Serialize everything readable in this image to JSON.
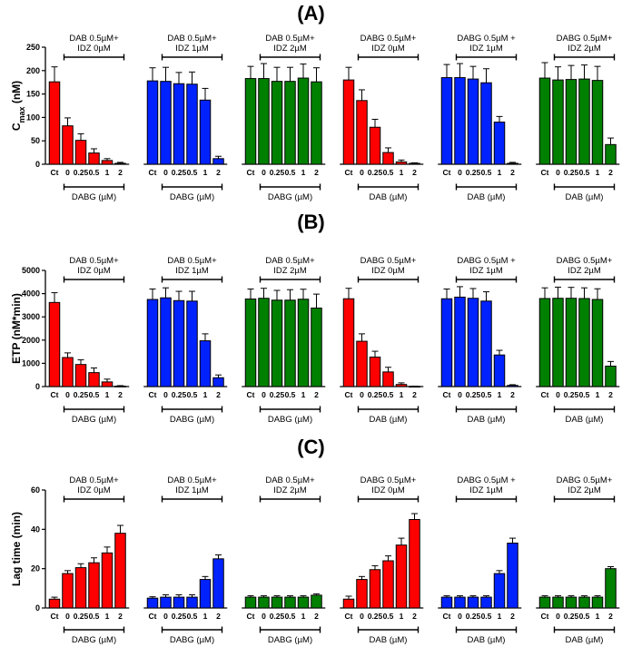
{
  "colors": {
    "red": "#ff0000",
    "blue": "#0022ff",
    "green": "#008000",
    "axis": "#000000"
  },
  "chart_data": [
    {
      "type": "bar",
      "panel_label": "(A)",
      "ylabel_main": "C",
      "ylabel_sub": "max",
      "ylabel_unit": " (nM)",
      "ylim": [
        0,
        250
      ],
      "yticks": [
        "0",
        "50",
        "100",
        "150",
        "200",
        "250"
      ],
      "grid": false,
      "groups": [
        {
          "top_label": [
            "DAB 0.5µM+",
            "IDZ 0µM"
          ],
          "categories": [
            "Ct",
            "0",
            "0.25",
            "0.5",
            "1",
            "2"
          ],
          "tick_labels": [
            "Ct",
            "0",
            "0.25",
            "0.5",
            "1",
            "2"
          ],
          "xlabel": "DABG (µM)",
          "color": "red",
          "values": [
            176,
            82,
            51,
            24,
            8,
            2
          ],
          "errors": [
            32,
            17,
            14,
            9,
            4,
            2
          ]
        },
        {
          "top_label": [
            "DAB 0.5µM+",
            "IDZ 1µM"
          ],
          "categories": [
            "Ct",
            "0",
            "0.25",
            "0.5",
            "1",
            "2"
          ],
          "tick_labels": [
            "Ct",
            "0",
            "0.25",
            "0.5",
            "1",
            "2"
          ],
          "xlabel": "DABG (µM)",
          "color": "blue",
          "values": [
            178,
            177,
            172,
            171,
            137,
            12
          ],
          "errors": [
            28,
            30,
            24,
            26,
            25,
            5
          ]
        },
        {
          "top_label": [
            "DAB 0.5µM+",
            "IDZ 2µM"
          ],
          "categories": [
            "Ct",
            "0",
            "0.25",
            "0.5",
            "1",
            "2"
          ],
          "tick_labels": [
            "Ct",
            "0",
            "0.25",
            "0.5",
            "1",
            "2"
          ],
          "xlabel": "DABG (µM)",
          "color": "green",
          "values": [
            183,
            183,
            177,
            177,
            184,
            176
          ],
          "errors": [
            26,
            32,
            30,
            30,
            30,
            30
          ]
        },
        {
          "top_label": [
            "DABG 0.5µM+",
            "IDZ 0µM"
          ],
          "categories": [
            "Ct",
            "0",
            "0.25",
            "0.5",
            "1",
            "2"
          ],
          "tick_labels": [
            "Ct",
            "0",
            "0.25",
            "0.5",
            "1",
            "2"
          ],
          "xlabel": "DAB (µM)",
          "color": "red",
          "values": [
            180,
            136,
            79,
            25,
            5,
            2
          ],
          "errors": [
            27,
            23,
            17,
            10,
            4,
            1
          ]
        },
        {
          "top_label": [
            "DABG 0.5µM +",
            "IDZ 1µM"
          ],
          "categories": [
            "Ct",
            "0",
            "0.25",
            "0.5",
            "1",
            "2"
          ],
          "tick_labels": [
            "Ct",
            "0",
            "0.25",
            "0.5",
            "1",
            "2"
          ],
          "xlabel": "DAB (µM)",
          "color": "blue",
          "values": [
            185,
            185,
            182,
            174,
            90,
            2
          ],
          "errors": [
            28,
            30,
            27,
            30,
            12,
            2
          ]
        },
        {
          "top_label": [
            "DABG 0.5µM+",
            "IDZ 2µM"
          ],
          "categories": [
            "Ct",
            "0",
            "0.25",
            "0.5",
            "1",
            "2"
          ],
          "tick_labels": [
            "Ct",
            "0",
            "0.25",
            "0.5",
            "1",
            "2"
          ],
          "xlabel": "DAB (µM)",
          "color": "green",
          "values": [
            184,
            180,
            181,
            182,
            179,
            42
          ],
          "errors": [
            33,
            28,
            30,
            30,
            30,
            14
          ]
        }
      ]
    },
    {
      "type": "bar",
      "panel_label": "(B)",
      "ylabel_main": "ETP (nM*min)",
      "ylabel_sub": "",
      "ylabel_unit": "",
      "ylim": [
        0,
        5000
      ],
      "yticks": [
        "0",
        "1000",
        "2000",
        "3000",
        "4000",
        "5000"
      ],
      "grid": false,
      "groups": [
        {
          "top_label": [
            "DAB 0.5µM+",
            "IDZ 0µM"
          ],
          "categories": [
            "Ct",
            "0",
            "0.25",
            "0.5",
            "1",
            "2"
          ],
          "tick_labels": [
            "Ct",
            "0",
            "0.25",
            "0.5",
            "1",
            "2"
          ],
          "xlabel": "DABG (µM)",
          "color": "red",
          "values": [
            3620,
            1250,
            950,
            600,
            200,
            20
          ],
          "errors": [
            420,
            200,
            200,
            200,
            120,
            20
          ]
        },
        {
          "top_label": [
            "DAB 0.5µM+",
            "IDZ 1µM"
          ],
          "categories": [
            "Ct",
            "0",
            "0.25",
            "0.5",
            "1",
            "2"
          ],
          "tick_labels": [
            "Ct",
            "0",
            "0.25",
            "0.5",
            "1",
            "2"
          ],
          "xlabel": "DABG (µM)",
          "color": "blue",
          "values": [
            3750,
            3820,
            3700,
            3680,
            1970,
            380
          ],
          "errors": [
            450,
            430,
            400,
            420,
            300,
            120
          ]
        },
        {
          "top_label": [
            "DAB 0.5µM+",
            "IDZ 2µM"
          ],
          "categories": [
            "Ct",
            "0",
            "0.25",
            "0.5",
            "1",
            "2"
          ],
          "tick_labels": [
            "Ct",
            "0",
            "0.25",
            "0.5",
            "1",
            "2"
          ],
          "xlabel": "DABG (µM)",
          "color": "green",
          "values": [
            3770,
            3800,
            3720,
            3720,
            3760,
            3380
          ],
          "errors": [
            430,
            430,
            420,
            450,
            430,
            600
          ]
        },
        {
          "top_label": [
            "DABG 0.5µM+",
            "IDZ 0µM"
          ],
          "categories": [
            "Ct",
            "0",
            "0.25",
            "0.5",
            "1",
            "2"
          ],
          "tick_labels": [
            "Ct",
            "0",
            "0.25",
            "0.5",
            "1",
            "2"
          ],
          "xlabel": "DAB (µM)",
          "color": "red",
          "values": [
            3780,
            1950,
            1270,
            630,
            90,
            10
          ],
          "errors": [
            450,
            320,
            250,
            200,
            70,
            10
          ]
        },
        {
          "top_label": [
            "DABG 0.5µM +",
            "IDZ 1µM"
          ],
          "categories": [
            "Ct",
            "0",
            "0.25",
            "0.5",
            "1",
            "2"
          ],
          "tick_labels": [
            "Ct",
            "0",
            "0.25",
            "0.5",
            "1",
            "2"
          ],
          "xlabel": "DAB (µM)",
          "color": "blue",
          "values": [
            3780,
            3850,
            3800,
            3680,
            1360,
            50
          ],
          "errors": [
            420,
            450,
            420,
            400,
            200,
            30
          ]
        },
        {
          "top_label": [
            "DABG 0.5µM+",
            "IDZ 2µM"
          ],
          "categories": [
            "Ct",
            "0",
            "0.25",
            "0.5",
            "1",
            "2"
          ],
          "tick_labels": [
            "Ct",
            "0",
            "0.25",
            "0.5",
            "1",
            "2"
          ],
          "xlabel": "DAB (µM)",
          "color": "green",
          "values": [
            3790,
            3800,
            3800,
            3790,
            3750,
            880
          ],
          "errors": [
            460,
            480,
            470,
            460,
            460,
            200
          ]
        }
      ]
    },
    {
      "type": "bar",
      "panel_label": "(C)",
      "ylabel_main": "Lag time (min)",
      "ylabel_sub": "",
      "ylabel_unit": "",
      "ylim": [
        0,
        60
      ],
      "yticks": [
        "0",
        "20",
        "40",
        "60"
      ],
      "grid": false,
      "groups": [
        {
          "top_label": [
            "DAB 0.5µM+",
            "IDZ 0µM"
          ],
          "categories": [
            "Ct",
            "0",
            "0.25",
            "0.5",
            "1",
            "2"
          ],
          "tick_labels": [
            "Ct",
            "0",
            "0.25",
            "0.5",
            "1",
            "2"
          ],
          "xlabel": "DABG (µM)",
          "color": "red",
          "values": [
            4.5,
            17.5,
            20.5,
            23,
            28,
            38
          ],
          "errors": [
            1,
            1.5,
            2,
            2.5,
            3,
            4
          ]
        },
        {
          "top_label": [
            "DAB 0.5µM+",
            "IDZ 1µM"
          ],
          "categories": [
            "Ct",
            "0",
            "0.25",
            "0.5",
            "1",
            "2"
          ],
          "tick_labels": [
            "Ct",
            "0",
            "0.25",
            "0.5",
            "1",
            "2"
          ],
          "xlabel": "DABG (µM)",
          "color": "blue",
          "values": [
            5,
            5.5,
            5.5,
            5.5,
            14.5,
            25
          ],
          "errors": [
            0.7,
            1.2,
            1.2,
            1.2,
            1.5,
            2
          ]
        },
        {
          "top_label": [
            "DAB 0.5µM+",
            "IDZ 2µM"
          ],
          "categories": [
            "Ct",
            "0",
            "0.25",
            "0.5",
            "1",
            "2"
          ],
          "tick_labels": [
            "Ct",
            "0",
            "0.25",
            "0.5",
            "1",
            "2"
          ],
          "xlabel": "DABG (µM)",
          "color": "green",
          "values": [
            5.5,
            5.5,
            5.5,
            5.5,
            5.5,
            6.5
          ],
          "errors": [
            0.7,
            0.7,
            0.7,
            0.7,
            0.7,
            0.7
          ]
        },
        {
          "top_label": [
            "DABG 0.5µM+",
            "IDZ 0µM"
          ],
          "categories": [
            "Ct",
            "0",
            "0.25",
            "0.5",
            "1",
            "2"
          ],
          "tick_labels": [
            "Ct",
            "0",
            "0.25",
            "0.5",
            "1",
            "2"
          ],
          "xlabel": "DAB (µM)",
          "color": "red",
          "values": [
            4.5,
            14.5,
            19.5,
            24,
            32,
            45
          ],
          "errors": [
            1.5,
            1.5,
            2,
            2.5,
            3.5,
            3
          ]
        },
        {
          "top_label": [
            "DABG 0.5µM +",
            "IDZ 1µM"
          ],
          "categories": [
            "Ct",
            "0",
            "0.25",
            "0.5",
            "1",
            "2"
          ],
          "tick_labels": [
            "Ct",
            "0",
            "0.25",
            "0.5",
            "1",
            "2"
          ],
          "xlabel": "DAB (µM)",
          "color": "blue",
          "values": [
            5.5,
            5.5,
            5.5,
            5.5,
            17.5,
            33
          ],
          "errors": [
            0.7,
            0.7,
            0.7,
            0.7,
            1.5,
            2.5
          ]
        },
        {
          "top_label": [
            "DABG 0.5µM+",
            "IDZ 2µM"
          ],
          "categories": [
            "Ct",
            "0",
            "0.25",
            "0.5",
            "1",
            "2"
          ],
          "tick_labels": [
            "Ct",
            "0",
            "0.25",
            "0.5",
            "1",
            "2"
          ],
          "xlabel": "DAB (µM)",
          "color": "green",
          "values": [
            5.5,
            5.5,
            5.5,
            5.5,
            5.5,
            20
          ],
          "errors": [
            0.7,
            0.7,
            0.7,
            0.7,
            0.7,
            1
          ]
        }
      ]
    }
  ]
}
